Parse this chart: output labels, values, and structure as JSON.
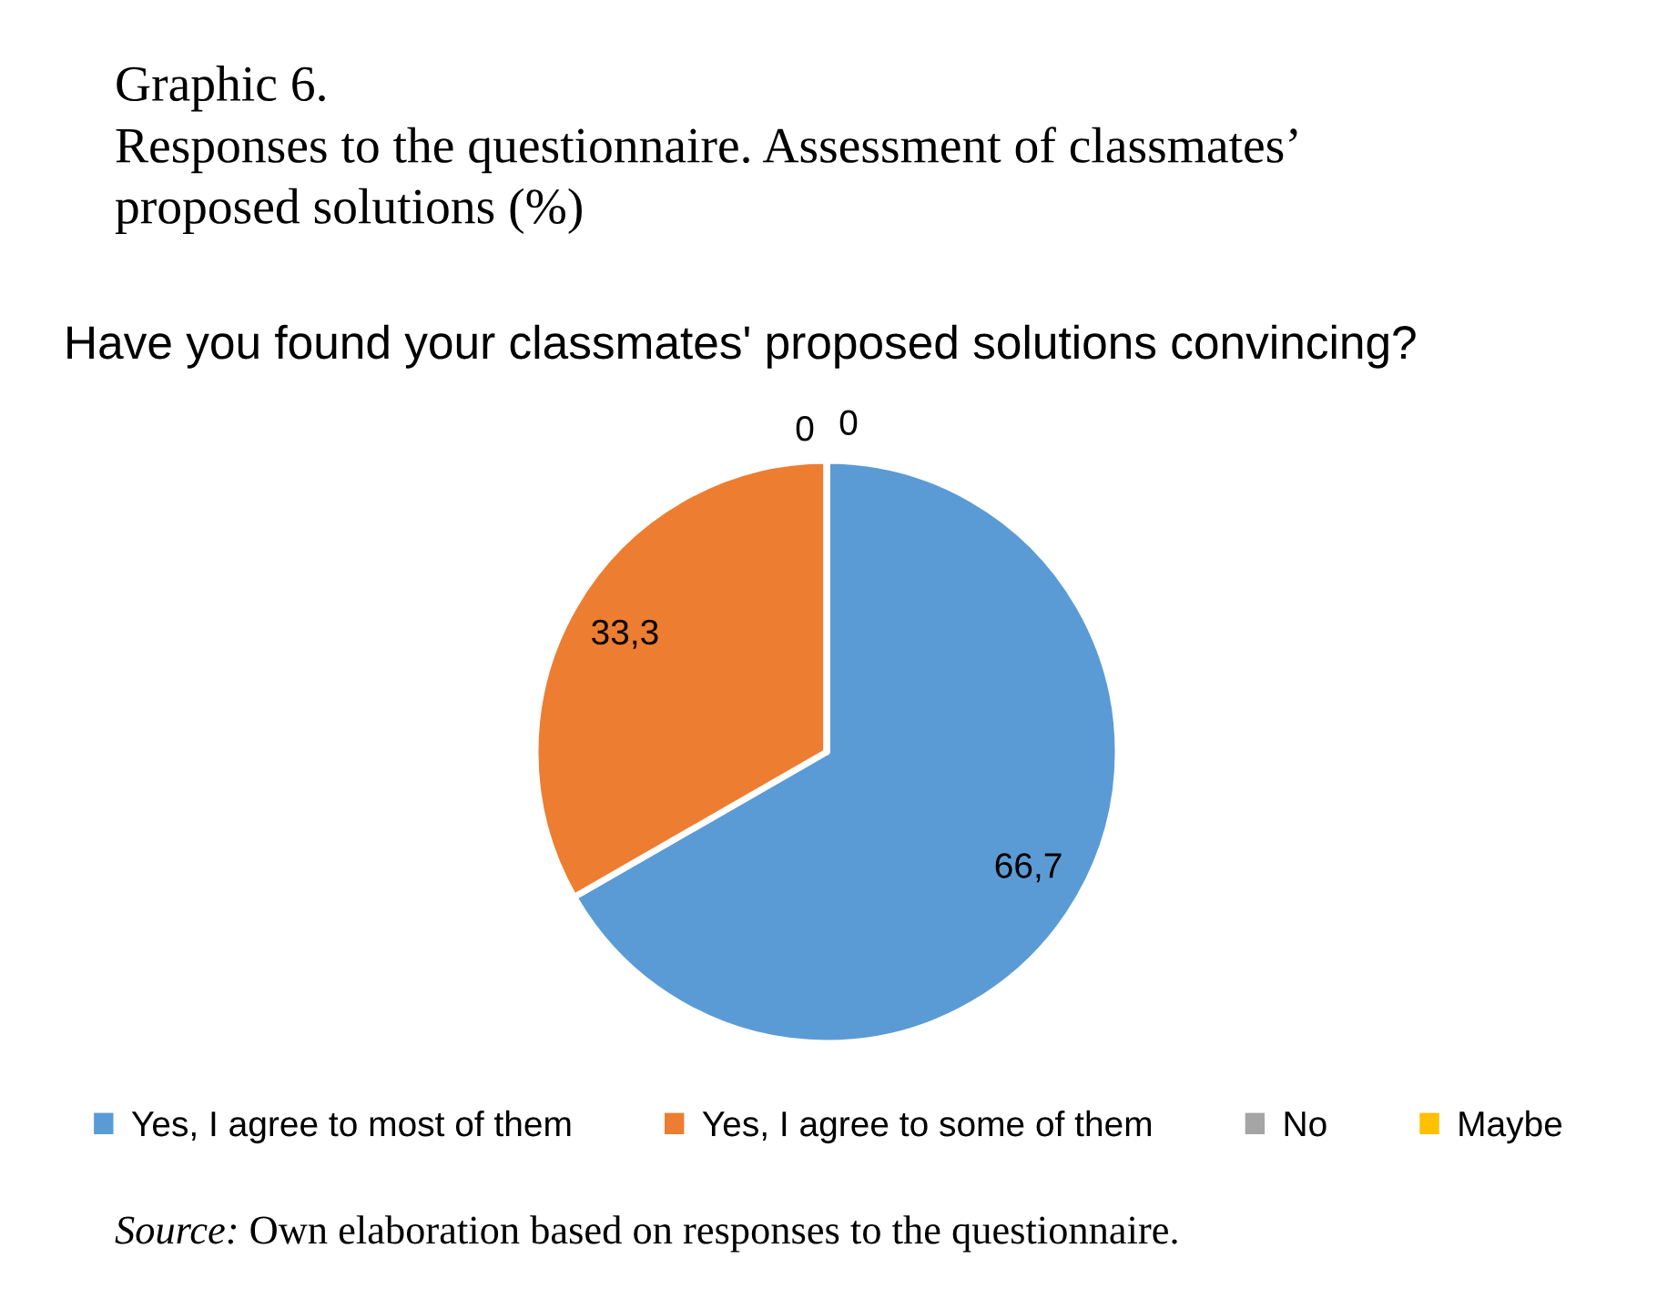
{
  "chart_data": {
    "type": "pie",
    "title": "Graphic 6.\nResponses to the questionnaire. Assessment of classmates’\nproposed solutions (%)",
    "subtitle": "Have you found your classmates' proposed solutions convincing?",
    "categories": [
      "Yes, I agree to most of them",
      "Yes, I agree to some of them",
      "No",
      "Maybe"
    ],
    "values": [
      66.7,
      33.3,
      0,
      0
    ],
    "colors": [
      "#5b9bd5",
      "#ed7d31",
      "#a5a5a5",
      "#ffc000"
    ],
    "value_labels": [
      "66,7",
      "33,3",
      "0",
      "0"
    ],
    "legend": "bottom",
    "annotations": [
      "Source: Own elaboration based on responses to the questionnaire."
    ]
  }
}
